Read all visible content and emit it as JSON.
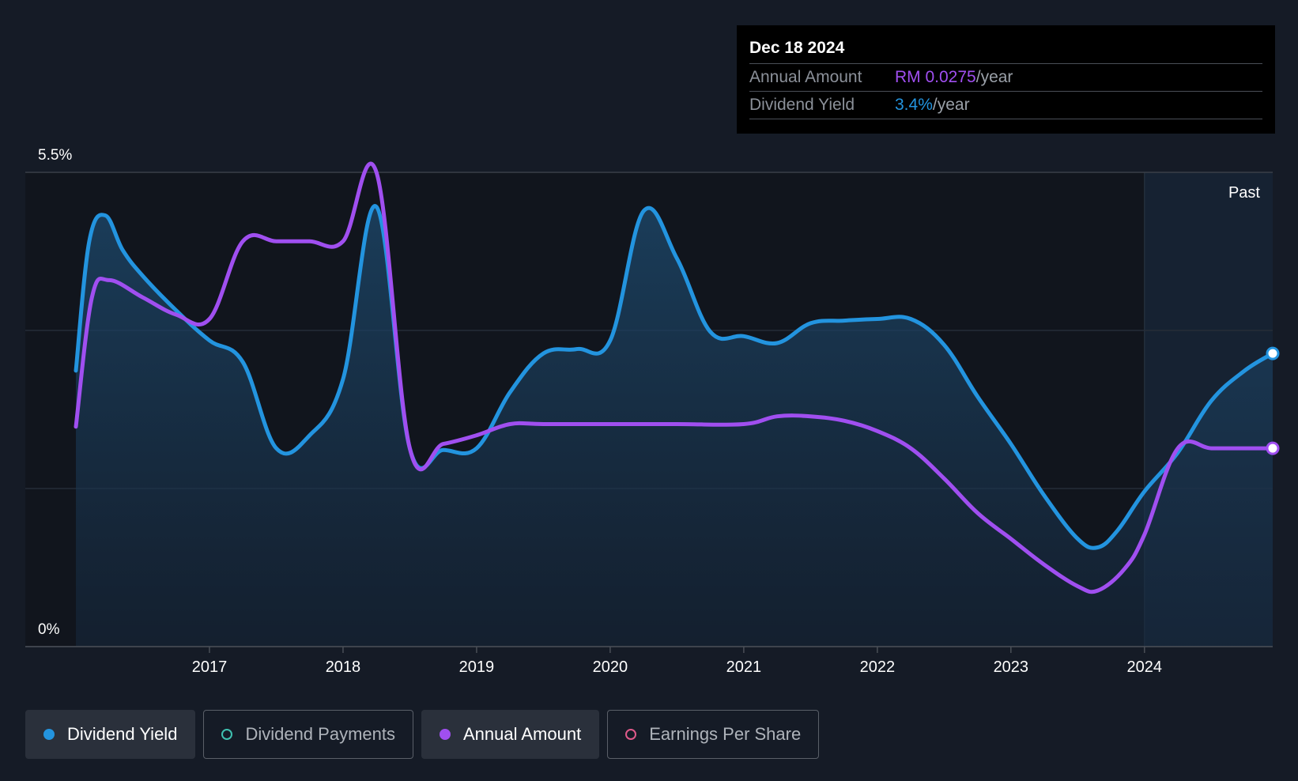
{
  "colors": {
    "background": "#151b26",
    "dividend_yield": "#2394df",
    "annual_amount": "#a04ff0",
    "dividend_payments": "#3fc1b0",
    "earnings_per_share": "#e05a8a"
  },
  "tooltip": {
    "date": "Dec 18 2024",
    "annual_amount_label": "Annual Amount",
    "annual_amount_value": "RM 0.0275",
    "annual_amount_unit": "/year",
    "yield_label": "Dividend Yield",
    "yield_value": "3.4%",
    "yield_unit": "/year"
  },
  "legend": [
    {
      "label": "Dividend Yield",
      "active": true,
      "icon": "filled-dot-icon"
    },
    {
      "label": "Dividend Payments",
      "active": false,
      "icon": "hollow-dot-icon"
    },
    {
      "label": "Annual Amount",
      "active": true,
      "icon": "filled-dot-icon"
    },
    {
      "label": "Earnings Per Share",
      "active": false,
      "icon": "hollow-dot-icon"
    }
  ],
  "chart_data": {
    "type": "line",
    "y_top_label": "5.5%",
    "y_bottom_label": "0%",
    "ylim": [
      0,
      5.5
    ],
    "xlim": [
      2016.0,
      2024.96
    ],
    "x_ticks": [
      "2017",
      "2018",
      "2019",
      "2020",
      "2021",
      "2022",
      "2023",
      "2024"
    ],
    "past_label": "Past",
    "past_region_start": 2024.0,
    "grid": true,
    "series": [
      {
        "name": "Dividend Yield",
        "color": "#2394df",
        "area": true,
        "points": [
          [
            2016.0,
            3.2
          ],
          [
            2016.1,
            4.7
          ],
          [
            2016.22,
            5.0
          ],
          [
            2016.35,
            4.6
          ],
          [
            2016.5,
            4.3
          ],
          [
            2016.75,
            3.9
          ],
          [
            2017.0,
            3.55
          ],
          [
            2017.25,
            3.3
          ],
          [
            2017.5,
            2.3
          ],
          [
            2017.75,
            2.45
          ],
          [
            2018.0,
            3.1
          ],
          [
            2018.25,
            5.1
          ],
          [
            2018.5,
            2.3
          ],
          [
            2018.75,
            2.28
          ],
          [
            2019.0,
            2.3
          ],
          [
            2019.25,
            2.95
          ],
          [
            2019.5,
            3.4
          ],
          [
            2019.75,
            3.45
          ],
          [
            2020.0,
            3.55
          ],
          [
            2020.25,
            5.05
          ],
          [
            2020.5,
            4.5
          ],
          [
            2020.75,
            3.65
          ],
          [
            2021.0,
            3.6
          ],
          [
            2021.25,
            3.52
          ],
          [
            2021.5,
            3.75
          ],
          [
            2021.75,
            3.78
          ],
          [
            2022.0,
            3.8
          ],
          [
            2022.25,
            3.8
          ],
          [
            2022.5,
            3.5
          ],
          [
            2022.75,
            2.9
          ],
          [
            2023.0,
            2.35
          ],
          [
            2023.25,
            1.75
          ],
          [
            2023.5,
            1.25
          ],
          [
            2023.65,
            1.15
          ],
          [
            2023.8,
            1.35
          ],
          [
            2024.0,
            1.8
          ],
          [
            2024.25,
            2.25
          ],
          [
            2024.5,
            2.85
          ],
          [
            2024.75,
            3.2
          ],
          [
            2024.96,
            3.4
          ]
        ]
      },
      {
        "name": "Annual Amount",
        "color": "#a04ff0",
        "area": false,
        "points": [
          [
            2016.0,
            2.55
          ],
          [
            2016.12,
            4.05
          ],
          [
            2016.25,
            4.25
          ],
          [
            2016.5,
            4.05
          ],
          [
            2016.75,
            3.85
          ],
          [
            2017.0,
            3.8
          ],
          [
            2017.25,
            4.7
          ],
          [
            2017.5,
            4.7
          ],
          [
            2017.75,
            4.7
          ],
          [
            2018.0,
            4.7
          ],
          [
            2018.25,
            5.5
          ],
          [
            2018.5,
            2.3
          ],
          [
            2018.75,
            2.35
          ],
          [
            2019.0,
            2.45
          ],
          [
            2019.25,
            2.58
          ],
          [
            2019.5,
            2.58
          ],
          [
            2020.0,
            2.58
          ],
          [
            2020.5,
            2.58
          ],
          [
            2021.0,
            2.58
          ],
          [
            2021.25,
            2.67
          ],
          [
            2021.5,
            2.67
          ],
          [
            2021.75,
            2.62
          ],
          [
            2022.0,
            2.5
          ],
          [
            2022.25,
            2.3
          ],
          [
            2022.5,
            1.95
          ],
          [
            2022.75,
            1.55
          ],
          [
            2023.0,
            1.25
          ],
          [
            2023.25,
            0.95
          ],
          [
            2023.5,
            0.7
          ],
          [
            2023.65,
            0.65
          ],
          [
            2023.85,
            0.9
          ],
          [
            2024.0,
            1.3
          ],
          [
            2024.25,
            2.3
          ],
          [
            2024.5,
            2.3
          ],
          [
            2024.75,
            2.3
          ],
          [
            2024.96,
            2.3
          ]
        ]
      }
    ]
  }
}
